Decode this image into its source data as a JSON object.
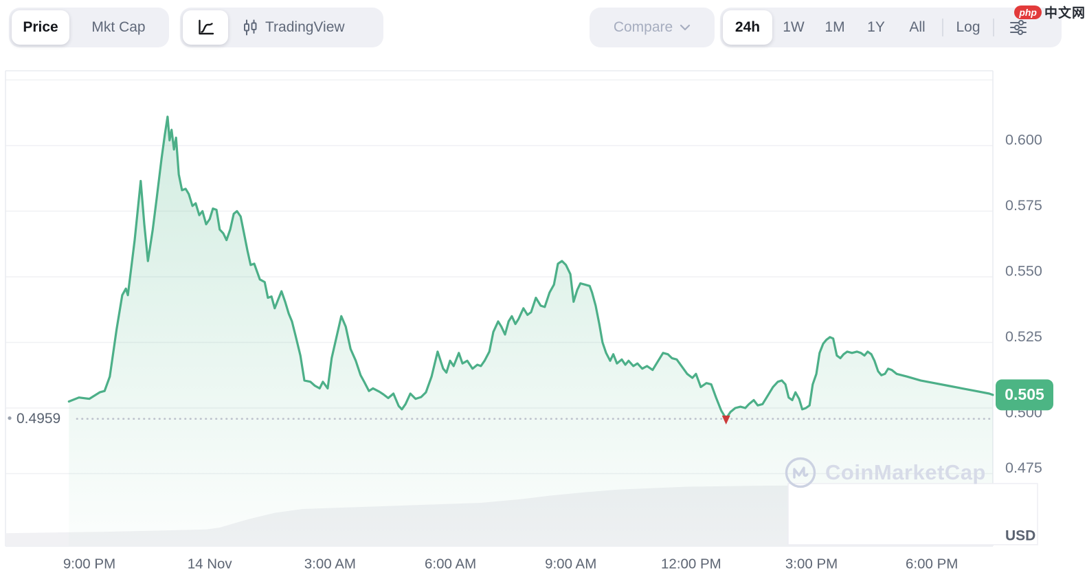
{
  "toolbar": {
    "metric": {
      "price": "Price",
      "mkt_cap": "Mkt Cap"
    },
    "chart_type": {
      "tradingview": "TradingView"
    },
    "compare_label": "Compare",
    "ranges": {
      "r24h": "24h",
      "r1w": "1W",
      "r1m": "1M",
      "r1y": "1Y",
      "all": "All",
      "log": "Log"
    }
  },
  "watermark_site": {
    "logo": "php",
    "name": "中文网"
  },
  "watermark_brand": "CoinMarketCap",
  "colors": {
    "line": "#4CAF88",
    "fill_top": "rgba(84,184,140,0.26)",
    "fill_bottom": "rgba(84,184,140,0.02)",
    "badge": "#4CB584",
    "badge_text": "#FFFFFF",
    "grid": "#F0F1F4",
    "border": "#E9EBF0",
    "volume_fill": "#F1F1F4",
    "overlay_box": "#FFFFFF",
    "overlay_border": "#EDEEF3",
    "axis_label": "#6E7787",
    "x_label": "#5D6573",
    "low_text": "#58616F",
    "dotted": "#BCC1CC",
    "marker_red": "#CB3A3A",
    "usd": "#5A6270"
  },
  "chart_data": {
    "type": "area",
    "currency_label": "USD",
    "current_price": "0.505",
    "low_annotation": "0.4959",
    "low_price": 0.4959,
    "low_time_hours": 15.87,
    "grid_on": true,
    "y_ticks": [
      0.6,
      0.575,
      0.55,
      0.525,
      0.5,
      0.475
    ],
    "y_tick_labels": [
      "0.600",
      "0.575",
      "0.550",
      "0.525",
      "0.500",
      "0.475"
    ],
    "gridline_prices": [
      0.625,
      0.6,
      0.575,
      0.55,
      0.525,
      0.5,
      0.475
    ],
    "x_tick_labels": [
      "9:00 PM",
      "14 Nov",
      "3:00 AM",
      "6:00 AM",
      "9:00 AM",
      "12:00 PM",
      "3:00 PM",
      "6:00 PM"
    ],
    "x_tick_hours": [
      0,
      3,
      6,
      9,
      12,
      15,
      18,
      21
    ],
    "x_domain_hours": [
      -2.09,
      22.52
    ],
    "y_domain": [
      0.4474,
      0.6285
    ],
    "series": [
      {
        "name": "price"
      }
    ],
    "points": [
      [
        -0.51,
        0.5025
      ],
      [
        -0.26,
        0.504
      ],
      [
        0,
        0.5035
      ],
      [
        0.26,
        0.506
      ],
      [
        0.38,
        0.5065
      ],
      [
        0.51,
        0.512
      ],
      [
        0.68,
        0.53
      ],
      [
        0.82,
        0.543
      ],
      [
        0.91,
        0.5455
      ],
      [
        0.96,
        0.543
      ],
      [
        1.13,
        0.564
      ],
      [
        1.28,
        0.5865
      ],
      [
        1.37,
        0.57
      ],
      [
        1.46,
        0.556
      ],
      [
        1.58,
        0.568
      ],
      [
        1.68,
        0.58
      ],
      [
        1.8,
        0.595
      ],
      [
        1.88,
        0.604
      ],
      [
        1.95,
        0.611
      ],
      [
        2.0,
        0.602
      ],
      [
        2.05,
        0.606
      ],
      [
        2.11,
        0.5985
      ],
      [
        2.16,
        0.603
      ],
      [
        2.23,
        0.589
      ],
      [
        2.31,
        0.583
      ],
      [
        2.4,
        0.5835
      ],
      [
        2.48,
        0.5815
      ],
      [
        2.57,
        0.577
      ],
      [
        2.65,
        0.578
      ],
      [
        2.74,
        0.5735
      ],
      [
        2.82,
        0.575
      ],
      [
        2.91,
        0.57
      ],
      [
        3.0,
        0.572
      ],
      [
        3.08,
        0.576
      ],
      [
        3.17,
        0.5755
      ],
      [
        3.25,
        0.568
      ],
      [
        3.34,
        0.5665
      ],
      [
        3.42,
        0.564
      ],
      [
        3.51,
        0.568
      ],
      [
        3.6,
        0.574
      ],
      [
        3.68,
        0.575
      ],
      [
        3.77,
        0.573
      ],
      [
        3.85,
        0.567
      ],
      [
        3.94,
        0.56
      ],
      [
        4.02,
        0.5545
      ],
      [
        4.11,
        0.555
      ],
      [
        4.25,
        0.549
      ],
      [
        4.37,
        0.548
      ],
      [
        4.45,
        0.542
      ],
      [
        4.54,
        0.5425
      ],
      [
        4.62,
        0.538
      ],
      [
        4.71,
        0.5415
      ],
      [
        4.79,
        0.5445
      ],
      [
        4.88,
        0.5405
      ],
      [
        4.97,
        0.536
      ],
      [
        5.05,
        0.533
      ],
      [
        5.14,
        0.5275
      ],
      [
        5.26,
        0.52
      ],
      [
        5.36,
        0.5105
      ],
      [
        5.51,
        0.51
      ],
      [
        5.62,
        0.5085
      ],
      [
        5.74,
        0.5075
      ],
      [
        5.82,
        0.51
      ],
      [
        5.94,
        0.5075
      ],
      [
        6.04,
        0.519
      ],
      [
        6.16,
        0.527
      ],
      [
        6.28,
        0.535
      ],
      [
        6.39,
        0.531
      ],
      [
        6.51,
        0.5225
      ],
      [
        6.64,
        0.518
      ],
      [
        6.76,
        0.5125
      ],
      [
        6.85,
        0.51
      ],
      [
        6.97,
        0.5065
      ],
      [
        7.07,
        0.5075
      ],
      [
        7.23,
        0.5062
      ],
      [
        7.33,
        0.5052
      ],
      [
        7.45,
        0.5038
      ],
      [
        7.58,
        0.5055
      ],
      [
        7.71,
        0.5008
      ],
      [
        7.79,
        0.4995
      ],
      [
        7.88,
        0.5015
      ],
      [
        8.0,
        0.5055
      ],
      [
        8.13,
        0.5035
      ],
      [
        8.27,
        0.5042
      ],
      [
        8.39,
        0.506
      ],
      [
        8.53,
        0.512
      ],
      [
        8.68,
        0.5215
      ],
      [
        8.82,
        0.515
      ],
      [
        8.9,
        0.5135
      ],
      [
        8.99,
        0.518
      ],
      [
        9.08,
        0.516
      ],
      [
        9.21,
        0.521
      ],
      [
        9.3,
        0.517
      ],
      [
        9.42,
        0.518
      ],
      [
        9.55,
        0.515
      ],
      [
        9.67,
        0.5165
      ],
      [
        9.76,
        0.516
      ],
      [
        9.85,
        0.518
      ],
      [
        9.97,
        0.5215
      ],
      [
        10.07,
        0.529
      ],
      [
        10.19,
        0.533
      ],
      [
        10.27,
        0.531
      ],
      [
        10.36,
        0.528
      ],
      [
        10.45,
        0.533
      ],
      [
        10.53,
        0.535
      ],
      [
        10.62,
        0.532
      ],
      [
        10.7,
        0.534
      ],
      [
        10.82,
        0.538
      ],
      [
        10.92,
        0.5355
      ],
      [
        11.01,
        0.5365
      ],
      [
        11.13,
        0.542
      ],
      [
        11.25,
        0.539
      ],
      [
        11.35,
        0.5385
      ],
      [
        11.47,
        0.544
      ],
      [
        11.58,
        0.547
      ],
      [
        11.68,
        0.555
      ],
      [
        11.78,
        0.556
      ],
      [
        11.88,
        0.5545
      ],
      [
        11.99,
        0.551
      ],
      [
        12.07,
        0.5405
      ],
      [
        12.16,
        0.545
      ],
      [
        12.24,
        0.5475
      ],
      [
        12.36,
        0.547
      ],
      [
        12.47,
        0.5465
      ],
      [
        12.53,
        0.544
      ],
      [
        12.62,
        0.539
      ],
      [
        12.71,
        0.532
      ],
      [
        12.79,
        0.525
      ],
      [
        12.88,
        0.521
      ],
      [
        12.98,
        0.518
      ],
      [
        13.06,
        0.5205
      ],
      [
        13.15,
        0.517
      ],
      [
        13.27,
        0.5185
      ],
      [
        13.36,
        0.5165
      ],
      [
        13.44,
        0.518
      ],
      [
        13.56,
        0.516
      ],
      [
        13.66,
        0.517
      ],
      [
        13.78,
        0.515
      ],
      [
        13.9,
        0.516
      ],
      [
        14.04,
        0.5145
      ],
      [
        14.18,
        0.518
      ],
      [
        14.3,
        0.521
      ],
      [
        14.42,
        0.5205
      ],
      [
        14.52,
        0.519
      ],
      [
        14.64,
        0.5185
      ],
      [
        14.76,
        0.516
      ],
      [
        14.9,
        0.513
      ],
      [
        15.03,
        0.5115
      ],
      [
        15.12,
        0.513
      ],
      [
        15.24,
        0.508
      ],
      [
        15.38,
        0.5095
      ],
      [
        15.5,
        0.509
      ],
      [
        15.62,
        0.504
      ],
      [
        15.75,
        0.499
      ],
      [
        15.87,
        0.496
      ],
      [
        15.98,
        0.4985
      ],
      [
        16.1,
        0.5
      ],
      [
        16.23,
        0.5005
      ],
      [
        16.35,
        0.5
      ],
      [
        16.44,
        0.5015
      ],
      [
        16.56,
        0.503
      ],
      [
        16.66,
        0.501
      ],
      [
        16.78,
        0.5015
      ],
      [
        16.92,
        0.505
      ],
      [
        17.04,
        0.508
      ],
      [
        17.16,
        0.51
      ],
      [
        17.26,
        0.5105
      ],
      [
        17.35,
        0.509
      ],
      [
        17.43,
        0.504
      ],
      [
        17.52,
        0.503
      ],
      [
        17.6,
        0.506
      ],
      [
        17.69,
        0.5035
      ],
      [
        17.77,
        0.4995
      ],
      [
        17.86,
        0.5
      ],
      [
        17.95,
        0.501
      ],
      [
        18.03,
        0.509
      ],
      [
        18.12,
        0.513
      ],
      [
        18.2,
        0.521
      ],
      [
        18.29,
        0.5245
      ],
      [
        18.37,
        0.526
      ],
      [
        18.46,
        0.527
      ],
      [
        18.54,
        0.5265
      ],
      [
        18.63,
        0.52
      ],
      [
        18.72,
        0.519
      ],
      [
        18.8,
        0.5205
      ],
      [
        18.89,
        0.5215
      ],
      [
        19.01,
        0.521
      ],
      [
        19.13,
        0.5215
      ],
      [
        19.23,
        0.521
      ],
      [
        19.32,
        0.52
      ],
      [
        19.4,
        0.5215
      ],
      [
        19.49,
        0.5205
      ],
      [
        19.57,
        0.518
      ],
      [
        19.66,
        0.514
      ],
      [
        19.74,
        0.5125
      ],
      [
        19.83,
        0.513
      ],
      [
        19.91,
        0.515
      ],
      [
        20.0,
        0.5145
      ],
      [
        20.12,
        0.513
      ],
      [
        20.38,
        0.512
      ],
      [
        20.72,
        0.5105
      ],
      [
        21.06,
        0.5095
      ],
      [
        21.4,
        0.5085
      ],
      [
        21.75,
        0.5075
      ],
      [
        22.09,
        0.5065
      ],
      [
        22.43,
        0.5055
      ],
      [
        22.52,
        0.505
      ]
    ],
    "volume_area": [
      [
        -2.09,
        0.027
      ],
      [
        0.34,
        0.03
      ],
      [
        2.91,
        0.035
      ],
      [
        3.25,
        0.039
      ],
      [
        3.94,
        0.056
      ],
      [
        4.62,
        0.07
      ],
      [
        5.31,
        0.078
      ],
      [
        6.34,
        0.081
      ],
      [
        7.36,
        0.084
      ],
      [
        8.39,
        0.087
      ],
      [
        9.76,
        0.091
      ],
      [
        10.79,
        0.099
      ],
      [
        11.47,
        0.106
      ],
      [
        12.33,
        0.113
      ],
      [
        13.18,
        0.119
      ],
      [
        14.04,
        0.122
      ],
      [
        14.9,
        0.125
      ],
      [
        15.92,
        0.126
      ],
      [
        16.61,
        0.127
      ],
      [
        22.52,
        0.13
      ]
    ]
  }
}
